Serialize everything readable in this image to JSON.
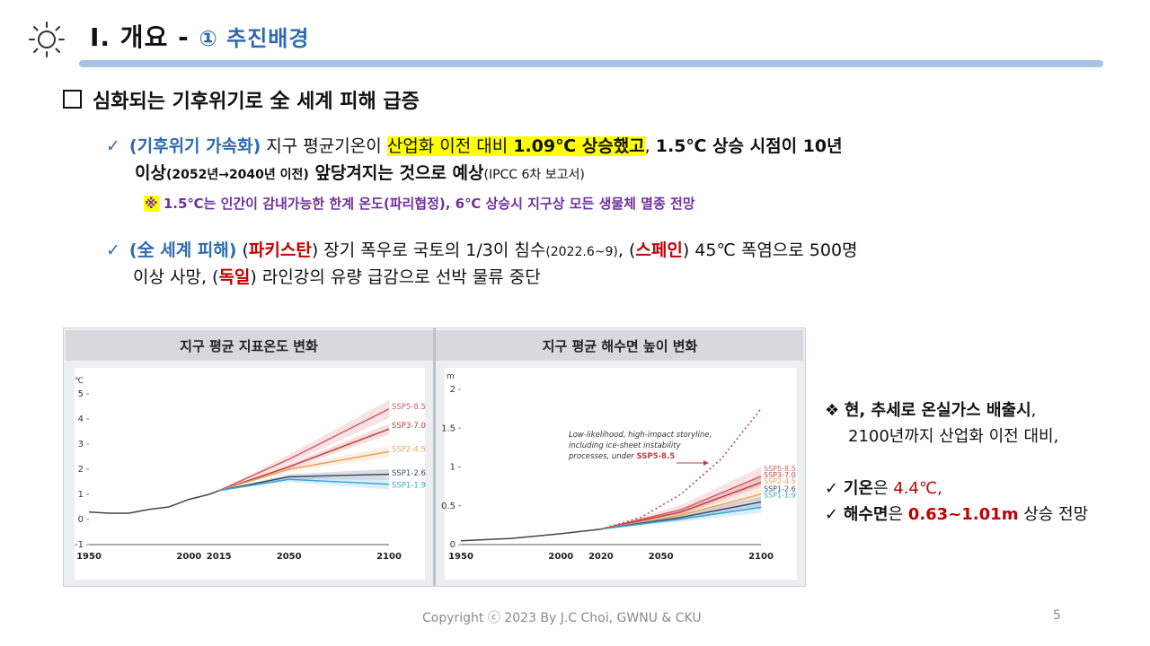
{
  "header": {
    "title": "Ⅰ. 개요 - ",
    "subtitle": "① 추진배경"
  },
  "heading": "심화되는 기후위기로 全 세계 피해 급증",
  "bullet1": {
    "tag": "(기후위기 가속화)",
    "t1": " 지구 평균기온이 ",
    "hl1": "산업화 이전 대비 ",
    "hl2": "1.09℃ 상승했고",
    "t2": ", ",
    "b1": "1.5℃ 상승 시점이 10년",
    "l2b1": "이상",
    "l2b2": "(2052년→2040년 이전)",
    "l2b3": " 앞당겨지는 것으로 예상",
    "l2s": "(IPCC 6차 보고서)"
  },
  "note": {
    "mark": "※",
    "text": " 1.5℃는 인간이 감내가능한 한계 온도(파리협정), 6℃ 상승시 지구상 모든 생물체 멸종 전망"
  },
  "bullet2": {
    "tag": "(全 세계 피해)",
    "t1": " (",
    "c1": "파키스탄",
    "t2": ") 장기 폭우로 국토의 1/3이 침수",
    "s1": "(2022.6~9)",
    "t3": ", (",
    "c2": "스페인",
    "t4": ") 45℃ 폭염으로 500명",
    "l2a": "이상 사망, (",
    "c3": "독일",
    "l2b": ") 라인강의 유량 급감으로 선박 물류 중단"
  },
  "chart_data": [
    {
      "type": "line",
      "title": "지구 평균 지표온도 변화",
      "ylabel": "℃",
      "ylim": [
        -1,
        5
      ],
      "yticks": [
        "5",
        "4",
        "3",
        "2",
        "1",
        "0",
        "-1"
      ],
      "xticks": [
        "1950",
        "2000",
        "2015",
        "2050",
        "2100"
      ],
      "historical": {
        "x": [
          1950,
          1960,
          1970,
          1980,
          1990,
          2000,
          2010,
          2015
        ],
        "y": [
          0.3,
          0.25,
          0.25,
          0.4,
          0.5,
          0.8,
          1.0,
          1.15
        ]
      },
      "series": [
        {
          "name": "SSP5-8.5",
          "color": "#d05f6b",
          "x": [
            2015,
            2050,
            2100
          ],
          "y": [
            1.15,
            2.4,
            4.4
          ]
        },
        {
          "name": "SSP3-7.0",
          "color": "#c0403f",
          "x": [
            2015,
            2050,
            2100
          ],
          "y": [
            1.15,
            2.1,
            3.6
          ]
        },
        {
          "name": "SSP2-4.5",
          "color": "#e8a25d",
          "x": [
            2015,
            2050,
            2100
          ],
          "y": [
            1.15,
            2.0,
            2.7
          ]
        },
        {
          "name": "SSP1-2.6",
          "color": "#3b4a6b",
          "x": [
            2015,
            2050,
            2100
          ],
          "y": [
            1.15,
            1.7,
            1.8
          ]
        },
        {
          "name": "SSP1-1.9",
          "color": "#39a8d8",
          "x": [
            2015,
            2050,
            2100
          ],
          "y": [
            1.15,
            1.6,
            1.4
          ]
        }
      ]
    },
    {
      "type": "line",
      "title": "지구 평균 해수면 높이 변화",
      "ylabel": "m",
      "ylim": [
        0,
        2
      ],
      "yticks": [
        "2",
        "1.5",
        "1",
        "0.5",
        "0"
      ],
      "xticks": [
        "1950",
        "2000",
        "2020",
        "2050",
        "2100"
      ],
      "annotation": "Low-likelihood, high-impact storyline, including ice-sheet instability processes, under SSP5-8.5",
      "annotation_lines": [
        "Low-likelihood, high-impact storyline,",
        "including ice-sheet instability",
        "processes, under "
      ],
      "annotation_tag": "SSP5-8.5",
      "historical": {
        "x": [
          1950,
          1975,
          2000,
          2020
        ],
        "y": [
          0.05,
          0.08,
          0.14,
          0.2
        ]
      },
      "storyline": {
        "x": [
          2020,
          2040,
          2060,
          2080,
          2100
        ],
        "y": [
          0.2,
          0.35,
          0.65,
          1.1,
          1.75
        ]
      },
      "series": [
        {
          "name": "SSP5-8.5",
          "color": "#d05f6b",
          "x": [
            2020,
            2060,
            2100
          ],
          "y": [
            0.2,
            0.45,
            0.88
          ]
        },
        {
          "name": "SSP3-7.0",
          "color": "#c0403f",
          "x": [
            2020,
            2060,
            2100
          ],
          "y": [
            0.2,
            0.42,
            0.8
          ]
        },
        {
          "name": "SSP2-4.5",
          "color": "#e8a25d",
          "x": [
            2020,
            2060,
            2100
          ],
          "y": [
            0.2,
            0.38,
            0.65
          ]
        },
        {
          "name": "SSP1-2.6",
          "color": "#3b4a6b",
          "x": [
            2020,
            2060,
            2100
          ],
          "y": [
            0.2,
            0.35,
            0.55
          ]
        },
        {
          "name": "SSP1-1.9",
          "color": "#39a8d8",
          "x": [
            2020,
            2060,
            2100
          ],
          "y": [
            0.2,
            0.33,
            0.48
          ]
        }
      ]
    }
  ],
  "right": {
    "l1a": "❖ ",
    "l1b": "현, 추세로 온실가스 배출시",
    "l1c": ",",
    "l2": "2100년까지 산업화 이전 대비,",
    "chk": "✓ ",
    "t1": "기온",
    "t1s": "은 ",
    "v1": "4.4℃,",
    "t2": "해수면",
    "t2s": "은 ",
    "v2": "0.63~1.01m",
    "t2e": " 상승 전망"
  },
  "footer": "Copyright ⓒ 2023 By J.C Choi, GWNU & CKU",
  "page_number": "5"
}
